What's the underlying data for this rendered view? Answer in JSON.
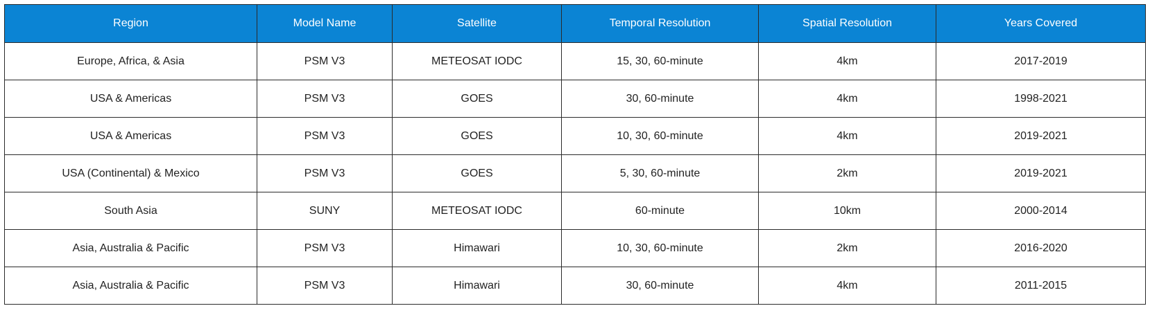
{
  "table": {
    "headers": [
      "Region",
      "Model Name",
      "Satellite",
      "Temporal Resolution",
      "Spatial Resolution",
      "Years Covered"
    ],
    "rows": [
      [
        "Europe, Africa, & Asia",
        "PSM V3",
        "METEOSAT IODC",
        "15, 30, 60-minute",
        "4km",
        "2017-2019"
      ],
      [
        "USA & Americas",
        "PSM V3",
        "GOES",
        "30, 60-minute",
        "4km",
        "1998-2021"
      ],
      [
        "USA & Americas",
        "PSM V3",
        "GOES",
        "10, 30, 60-minute",
        "4km",
        "2019-2021"
      ],
      [
        "USA (Continental) & Mexico",
        "PSM V3",
        "GOES",
        "5, 30, 60-minute",
        "2km",
        "2019-2021"
      ],
      [
        "South Asia",
        "SUNY",
        "METEOSAT IODC",
        "60-minute",
        "10km",
        "2000-2014"
      ],
      [
        "Asia, Australia & Pacific",
        "PSM V3",
        "Himawari",
        "10, 30, 60-minute",
        "2km",
        "2016-2020"
      ],
      [
        "Asia, Australia & Pacific",
        "PSM V3",
        "Himawari",
        "30, 60-minute",
        "4km",
        "2011-2015"
      ]
    ]
  },
  "colors": {
    "header_bg": "#0b84d4",
    "header_text": "#ffffff",
    "border": "#2a2a2a",
    "cell_text": "#222222"
  }
}
